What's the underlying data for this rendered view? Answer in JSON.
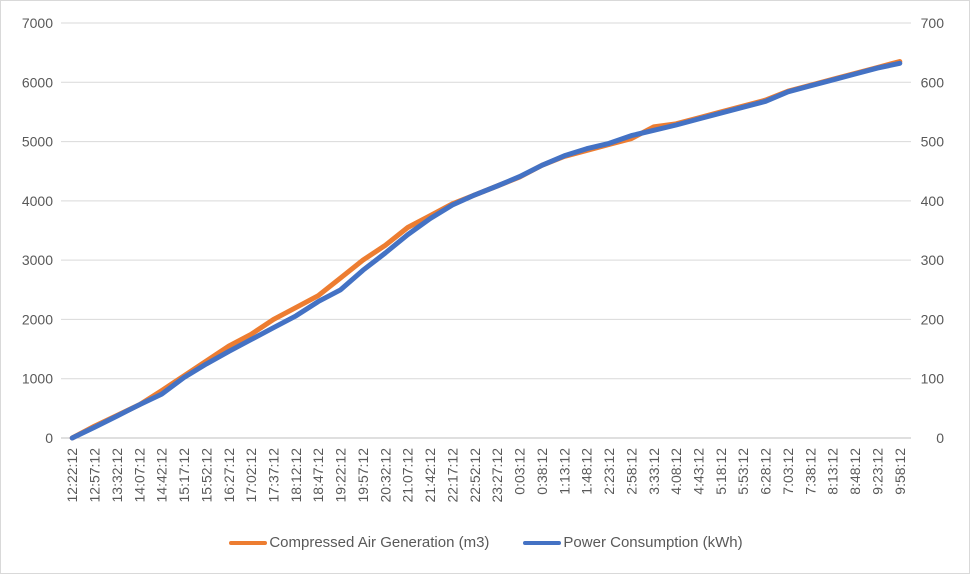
{
  "chart_data": {
    "type": "line",
    "title": "",
    "xlabel": "",
    "ylabel": "",
    "y2label": "",
    "ylim": [
      0,
      7000
    ],
    "y2lim": [
      0,
      700
    ],
    "yticks": [
      "0",
      "1000",
      "2000",
      "3000",
      "4000",
      "5000",
      "6000",
      "7000"
    ],
    "y2ticks": [
      "0",
      "100",
      "200",
      "300",
      "400",
      "500",
      "600",
      "700"
    ],
    "grid": true,
    "legend_position": "bottom",
    "categories": [
      "12:22:12",
      "12:57:12",
      "13:32:12",
      "14:07:12",
      "14:42:12",
      "15:17:12",
      "15:52:12",
      "16:27:12",
      "17:02:12",
      "17:37:12",
      "18:12:12",
      "18:47:12",
      "19:22:12",
      "19:57:12",
      "20:32:12",
      "21:07:12",
      "21:42:12",
      "22:17:12",
      "22:52:12",
      "23:27:12",
      "0:03:12",
      "0:38:12",
      "1:13:12",
      "1:48:12",
      "2:23:12",
      "2:58:12",
      "3:33:12",
      "4:08:12",
      "4:43:12",
      "5:18:12",
      "5:53:12",
      "6:28:12",
      "7:03:12",
      "7:38:12",
      "8:13:12",
      "8:48:12",
      "9:23:12",
      "9:58:12"
    ],
    "series": [
      {
        "name": "Compressed Air Generation (m3)",
        "axis": "left",
        "color": "#ED7D31",
        "values": [
          0,
          200,
          380,
          560,
          800,
          1050,
          1300,
          1550,
          1750,
          2000,
          2200,
          2400,
          2700,
          3000,
          3250,
          3550,
          3750,
          3950,
          4100,
          4250,
          4400,
          4600,
          4750,
          4850,
          4950,
          5050,
          5250,
          5300,
          5400,
          5500,
          5600,
          5700,
          5850,
          5950,
          6050,
          6150,
          6250,
          6350
        ]
      },
      {
        "name": "Power Consumption (kWh)",
        "axis": "right",
        "color": "#4472C4",
        "values": [
          0,
          18,
          37,
          56,
          74,
          102,
          125,
          146,
          166,
          186,
          206,
          230,
          250,
          283,
          312,
          343,
          370,
          393,
          410,
          425,
          441,
          460,
          476,
          488,
          497,
          510,
          519,
          528,
          538,
          548,
          558,
          568,
          584,
          594,
          604,
          614,
          624,
          632
        ]
      }
    ]
  }
}
